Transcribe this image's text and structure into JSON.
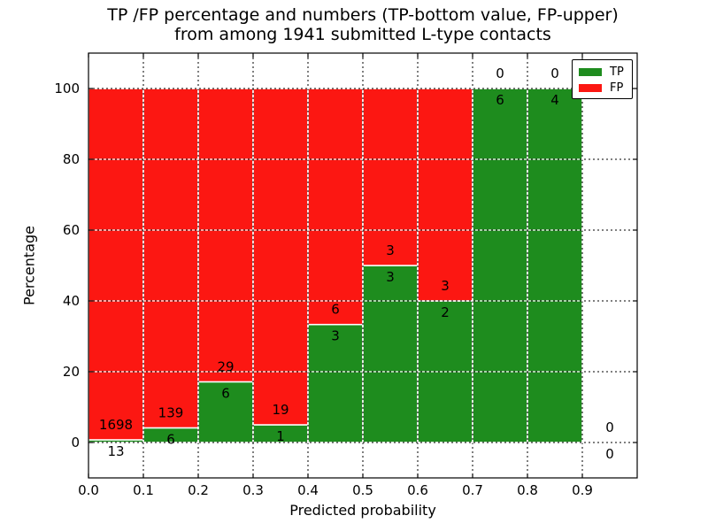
{
  "chart_data": {
    "type": "bar",
    "stacked": true,
    "normalized": "percent",
    "title_line1": "TP /FP percentage and numbers (TP-bottom value, FP-upper)",
    "title_line2": "from among 1941 submitted L-type contacts",
    "xlabel": "Predicted probability",
    "ylabel": "Percentage",
    "xlim": [
      0.0,
      1.0
    ],
    "ylim": [
      -10,
      110
    ],
    "grid": true,
    "categories": [
      "0.0-0.1",
      "0.1-0.2",
      "0.2-0.3",
      "0.3-0.4",
      "0.4-0.5",
      "0.5-0.6",
      "0.6-0.7",
      "0.7-0.8",
      "0.8-0.9",
      "0.9-1.0"
    ],
    "bin_edges": [
      0.0,
      0.1,
      0.2,
      0.3,
      0.4,
      0.5,
      0.6,
      0.7,
      0.8,
      0.9,
      1.0
    ],
    "x_tick_values": [
      0.0,
      0.1,
      0.2,
      0.3,
      0.4,
      0.5,
      0.6,
      0.7,
      0.8,
      0.9
    ],
    "x_tick_labels": [
      "0.0",
      "0.1",
      "0.2",
      "0.3",
      "0.4",
      "0.5",
      "0.6",
      "0.7",
      "0.8",
      "0.9"
    ],
    "y_tick_values": [
      0,
      20,
      40,
      60,
      80,
      100
    ],
    "y_tick_labels": [
      "0",
      "20",
      "40",
      "60",
      "80",
      "100"
    ],
    "total_contacts": 1941,
    "series": [
      {
        "name": "TP",
        "color": "#1e8c1e",
        "counts": [
          13,
          6,
          6,
          1,
          3,
          3,
          2,
          6,
          4,
          0
        ]
      },
      {
        "name": "FP",
        "color": "#fc1712",
        "counts": [
          1698,
          139,
          29,
          19,
          6,
          3,
          3,
          0,
          0,
          0
        ]
      }
    ],
    "tp_percent": [
      0.76,
      4.14,
      17.14,
      5.0,
      33.33,
      50.0,
      40.0,
      100.0,
      100.0,
      0.0
    ],
    "legend": {
      "position": "upper right",
      "entries": [
        {
          "label": "TP",
          "color": "#1e8c1e"
        },
        {
          "label": "FP",
          "color": "#fc1712"
        }
      ]
    },
    "bar_edge_color": "#ffffff",
    "grid_color": "#000000",
    "frame_color": "#000000"
  }
}
